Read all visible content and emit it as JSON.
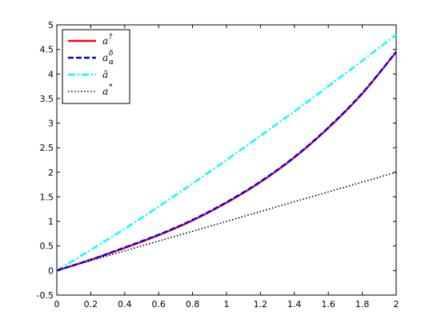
{
  "chart_data": {
    "type": "line",
    "title": "",
    "xlabel": "",
    "ylabel": "",
    "xlim": [
      0,
      2
    ],
    "ylim": [
      -0.5,
      5
    ],
    "x_ticks": [
      "0",
      "0.2",
      "0.4",
      "0.6",
      "0.8",
      "1",
      "1.2",
      "1.4",
      "1.6",
      "1.8",
      "2"
    ],
    "y_ticks": [
      "-0.5",
      "0",
      "0.5",
      "1",
      "1.5",
      "2",
      "2.5",
      "3",
      "3.5",
      "4",
      "4.5",
      "5"
    ],
    "grid": false,
    "legend_position": "top-left",
    "x": [
      0,
      0.2,
      0.4,
      0.6,
      0.8,
      1.0,
      1.2,
      1.4,
      1.6,
      1.8,
      2.0
    ],
    "series": [
      {
        "name": "a†",
        "base": "a",
        "sup": "†",
        "sub": "",
        "color": "#ff0000",
        "style": "solid",
        "values": [
          0,
          0.22,
          0.46,
          0.72,
          1.02,
          1.38,
          1.8,
          2.3,
          2.9,
          3.6,
          4.45
        ]
      },
      {
        "name": "aαδ",
        "base": "a",
        "sup": "δ",
        "sub": "α",
        "color": "#0000ff",
        "style": "dashed",
        "values": [
          0,
          0.22,
          0.47,
          0.73,
          1.03,
          1.39,
          1.81,
          2.31,
          2.91,
          3.61,
          4.45
        ]
      },
      {
        "name": "ā",
        "base": "ā",
        "sup": "",
        "sub": "",
        "color": "#00ffff",
        "style": "dashdot",
        "values": [
          0,
          0.42,
          0.85,
          1.3,
          1.77,
          2.25,
          2.74,
          3.24,
          3.75,
          4.27,
          4.8
        ]
      },
      {
        "name": "a*",
        "base": "a",
        "sup": "*",
        "sub": "",
        "color": "#000000",
        "style": "dotted",
        "values": [
          0,
          0.2,
          0.4,
          0.6,
          0.8,
          1.0,
          1.2,
          1.4,
          1.6,
          1.8,
          2.0
        ]
      }
    ]
  }
}
